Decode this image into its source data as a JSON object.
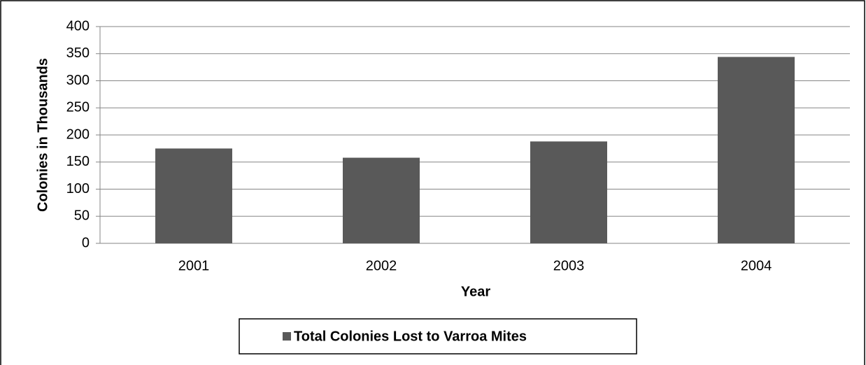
{
  "chart_data": {
    "type": "bar",
    "x_label": "Year",
    "y_label": "Colonies in Thousands",
    "categories": [
      "2001",
      "2002",
      "2003",
      "2004"
    ],
    "series": [
      {
        "name": "Total Colonies Lost to Varroa Mites",
        "color": "#595959",
        "values": [
          175,
          158,
          188,
          344
        ]
      }
    ],
    "ylim": [
      0,
      400
    ],
    "yticks": [
      0,
      50,
      100,
      150,
      200,
      250,
      300,
      350,
      400
    ],
    "grid": true,
    "legend": "bottom"
  }
}
